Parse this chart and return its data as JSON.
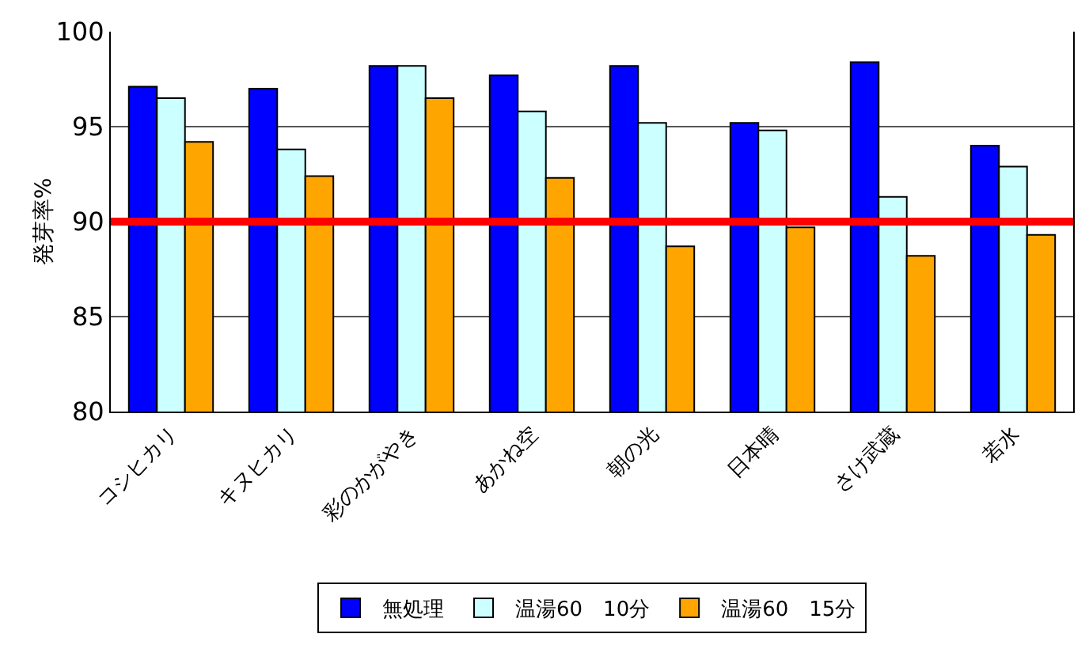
{
  "chart_data": {
    "type": "bar",
    "ylabel": "発芽率%",
    "categories": [
      "コシヒカリ",
      "キヌヒカリ",
      "彩のかがやき",
      "あかね空",
      "朝の光",
      "日本晴",
      "さけ武蔵",
      "若水"
    ],
    "series": [
      {
        "name": "無処理",
        "color": "#0000ff",
        "values": [
          97.1,
          97.0,
          98.2,
          97.7,
          98.2,
          95.2,
          98.4,
          94.0
        ]
      },
      {
        "name": "温湯60　10分",
        "color": "#ccffff",
        "values": [
          96.5,
          93.8,
          98.2,
          95.8,
          95.2,
          94.8,
          91.3,
          92.9
        ]
      },
      {
        "name": "温湯60　15分",
        "color": "#ffa500",
        "values": [
          94.2,
          92.4,
          96.5,
          92.3,
          88.7,
          89.7,
          88.2,
          89.3
        ]
      }
    ],
    "ylim": [
      80,
      100
    ],
    "yticks": [
      80,
      85,
      90,
      95,
      100
    ],
    "grid": "y",
    "legend": "bottom",
    "ref_lines": [
      {
        "axis": "y",
        "value": 90,
        "color": "#ff0000"
      }
    ]
  }
}
